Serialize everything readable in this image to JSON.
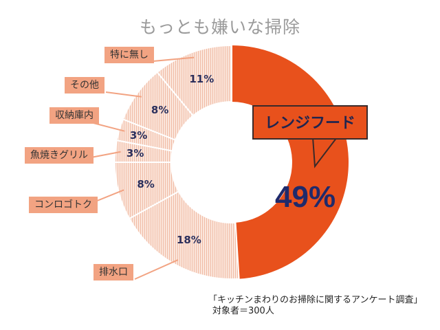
{
  "chart_data": {
    "type": "pie",
    "title": "もっとも嫌いな掃除",
    "categories": [
      "レンジフード",
      "排水口",
      "コンロゴトク",
      "魚焼きグリル",
      "収納庫内",
      "その他",
      "特に無し"
    ],
    "values": [
      49,
      18,
      8,
      3,
      3,
      8,
      11
    ],
    "value_labels": [
      "49%",
      "18%",
      "8%",
      "3%",
      "3%",
      "8%",
      "11%"
    ],
    "colors": {
      "highlight": "#e8511c",
      "others": "#f7d3c3",
      "label_bg": "#f2a382",
      "value_text": "#2b2f5c"
    },
    "donut": true,
    "footnote": [
      "「キッチンまわりのお掃除に関するアンケート調査」",
      "対象者＝300人"
    ]
  }
}
